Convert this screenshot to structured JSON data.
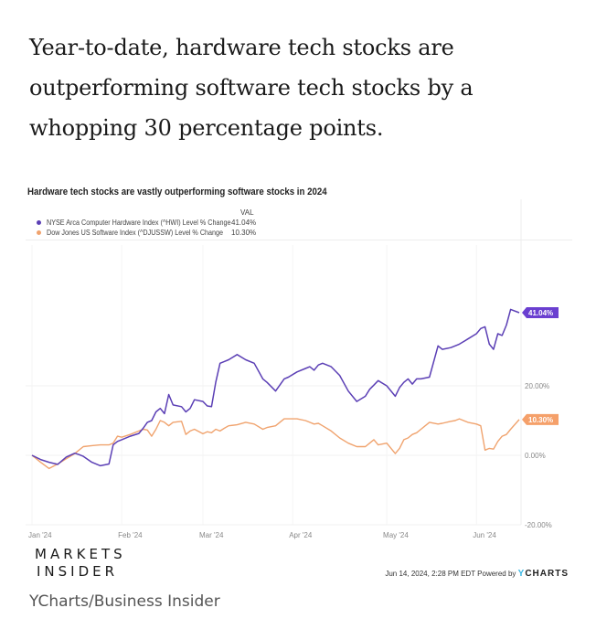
{
  "article": {
    "headline": "Year-to-date, hardware tech stocks are outperforming software tech stocks by a whopping 30 percentage points.",
    "source_caption": "YCharts/Business Insider"
  },
  "branding": {
    "logo_line1": "MARKETS",
    "logo_line2": "INSIDER",
    "timestamp": "Jun 14, 2024, 2:28 PM EDT",
    "powered_by": "Powered by",
    "ycharts_y": "Y",
    "ycharts_rest": "CHARTS"
  },
  "colors": {
    "hardware": "#5b3fb5",
    "software": "#f0a36e",
    "hardware_label_bg": "#6a3fd0",
    "software_label_bg": "#f5a06a"
  },
  "chart_data": {
    "type": "line",
    "title": "Hardware tech stocks are vastly outperforming software stocks in 2024",
    "legend_header": "VAL",
    "legend_placement": "top-left",
    "xlabel": "",
    "ylabel": "",
    "ylim": [
      -20,
      45
    ],
    "yticks": [
      20,
      0,
      -20
    ],
    "ytick_labels": [
      "20.00%",
      "0.00%",
      "-20.00%"
    ],
    "grid": true,
    "x_tick_labels": [
      "Jan '24",
      "Feb '24",
      "Mar '24",
      "Apr '24",
      "May '24",
      "Jun '24"
    ],
    "x_tick_positions": [
      0,
      21,
      40,
      61,
      83,
      104
    ],
    "x_max": 114,
    "series": [
      {
        "name": "NYSE Arca Computer Hardware Index (^HWI) Level % Change",
        "last_value_label": "41.04%",
        "x": [
          0,
          2,
          4,
          6,
          8,
          10,
          11,
          12,
          14,
          16,
          18,
          19,
          20,
          21,
          23,
          25,
          26,
          27,
          28,
          29,
          30,
          31,
          32,
          33,
          35,
          36,
          37,
          38,
          40,
          41,
          42,
          43,
          44,
          45,
          46,
          48,
          50,
          52,
          54,
          55,
          57,
          59,
          60,
          62,
          64,
          65,
          66,
          67,
          68,
          70,
          72,
          74,
          76,
          78,
          79,
          80,
          81,
          83,
          85,
          86,
          87,
          88,
          89,
          90,
          91,
          93,
          95,
          96,
          98,
          99,
          100,
          102,
          104,
          105,
          106,
          107,
          108,
          109,
          110,
          111,
          112,
          114
        ],
        "values": [
          0,
          -1.2,
          -2.0,
          -2.6,
          -0.5,
          0.6,
          0.2,
          -0.3,
          -2.0,
          -3.0,
          -2.5,
          3.0,
          4.0,
          4.5,
          5.5,
          6.3,
          7.8,
          9.5,
          10.0,
          12.5,
          13.5,
          12.0,
          17.5,
          14.5,
          14.0,
          12.5,
          13.5,
          16.0,
          15.5,
          14.2,
          14.0,
          21.0,
          26.5,
          27.0,
          27.5,
          29.0,
          27.5,
          26.5,
          22.0,
          21.0,
          18.5,
          22.0,
          22.5,
          24.0,
          25.0,
          25.5,
          24.5,
          26.0,
          26.5,
          25.5,
          23.0,
          18.5,
          15.5,
          17.0,
          19.0,
          20.2,
          21.5,
          20.0,
          17.0,
          19.5,
          21.0,
          22.0,
          20.5,
          22.0,
          22.0,
          22.5,
          31.5,
          30.5,
          31.0,
          31.5,
          32.0,
          33.5,
          35.0,
          36.5,
          37.0,
          32.0,
          30.5,
          35.0,
          34.5,
          37.5,
          42.0,
          41.04
        ]
      },
      {
        "name": "Dow Jones US Software Index (^DJUSSW) Level % Change",
        "last_value_label": "10.30%",
        "x": [
          0,
          2,
          4,
          6,
          8,
          10,
          12,
          14,
          16,
          18,
          19,
          20,
          21,
          23,
          25,
          26,
          27,
          28,
          29,
          30,
          31,
          32,
          33,
          35,
          36,
          37,
          38,
          40,
          41,
          42,
          43,
          44,
          45,
          46,
          48,
          50,
          52,
          54,
          55,
          57,
          59,
          60,
          62,
          64,
          65,
          66,
          67,
          68,
          70,
          72,
          74,
          76,
          78,
          79,
          80,
          81,
          83,
          85,
          86,
          87,
          88,
          89,
          90,
          91,
          93,
          95,
          96,
          98,
          99,
          100,
          102,
          104,
          105,
          106,
          107,
          108,
          109,
          110,
          111,
          112,
          114
        ],
        "values": [
          0,
          -2.0,
          -3.8,
          -2.5,
          -1.0,
          0.5,
          2.5,
          2.8,
          3.0,
          3.0,
          3.5,
          5.5,
          5.2,
          6.0,
          7.0,
          7.5,
          7.3,
          5.5,
          7.5,
          10.0,
          9.5,
          8.5,
          9.5,
          9.8,
          6.0,
          7.0,
          7.5,
          6.2,
          6.8,
          6.5,
          7.5,
          7.0,
          7.8,
          8.5,
          8.8,
          9.5,
          9.0,
          7.5,
          8.0,
          8.5,
          10.5,
          10.5,
          10.5,
          10.0,
          9.5,
          9.0,
          9.2,
          8.5,
          7.0,
          5.0,
          3.5,
          2.5,
          2.5,
          3.5,
          4.5,
          3.0,
          3.5,
          0.5,
          2.0,
          4.5,
          5.0,
          6.0,
          6.5,
          7.5,
          9.5,
          9.0,
          9.2,
          9.8,
          10.0,
          10.5,
          9.5,
          9.0,
          8.5,
          1.5,
          2.0,
          1.8,
          4.0,
          5.5,
          6.0,
          7.5,
          10.3
        ]
      }
    ]
  }
}
